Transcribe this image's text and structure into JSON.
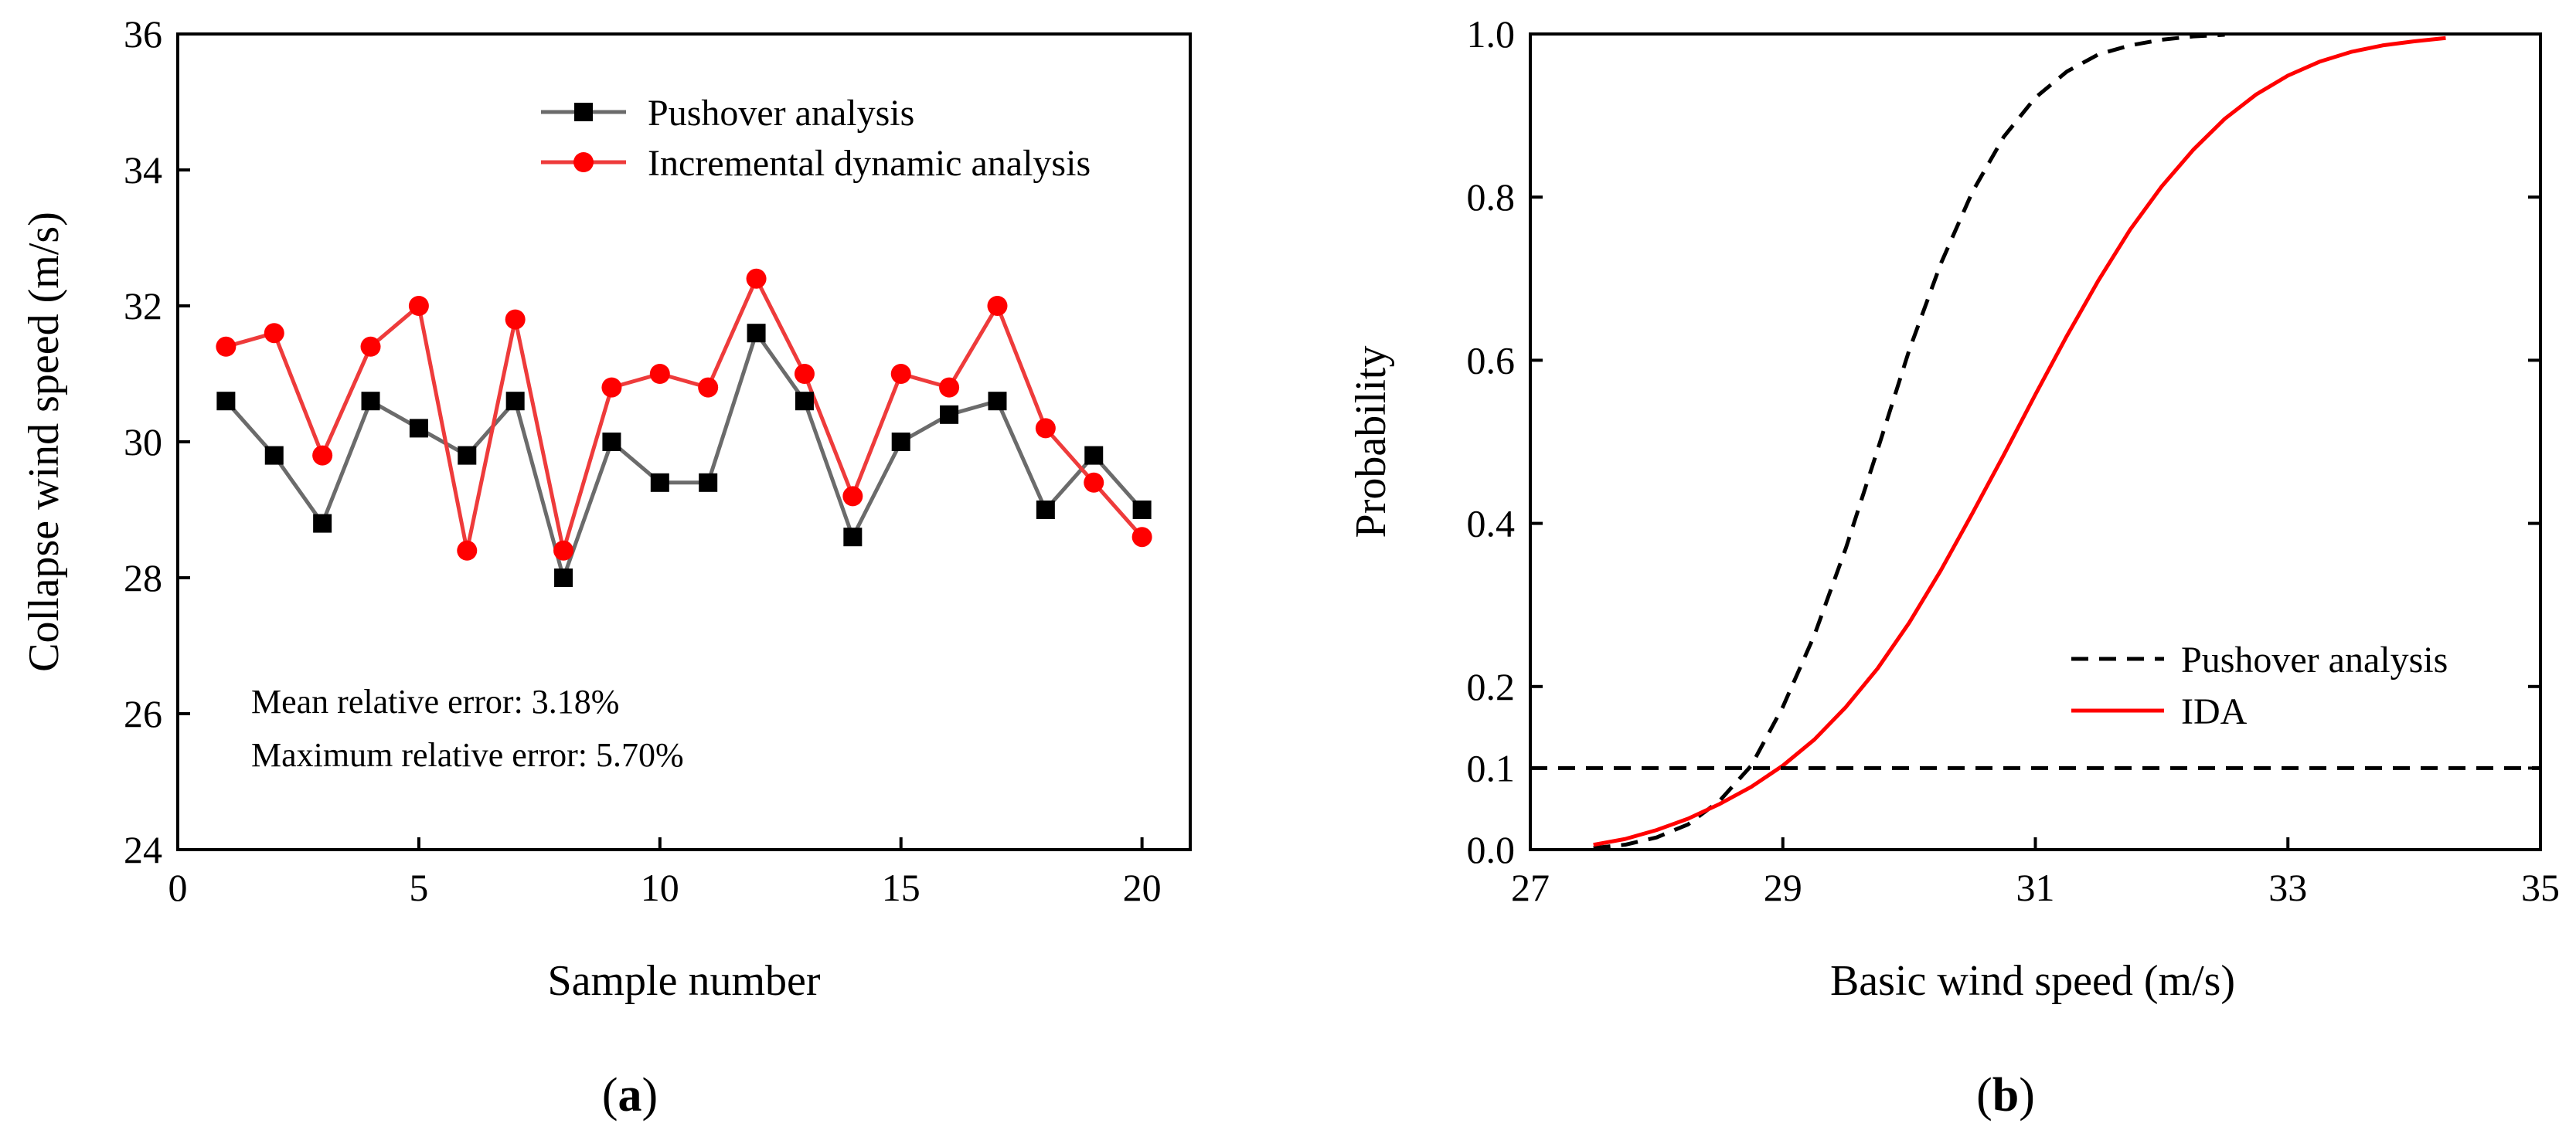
{
  "chart_data": [
    {
      "id": "a",
      "type": "line",
      "panel_label": "(a)",
      "xlabel": "Sample number",
      "ylabel": "Collapse wind speed (m/s)",
      "xlim": [
        0,
        21
      ],
      "ylim": [
        24,
        36
      ],
      "xticks": [
        0,
        5,
        10,
        15,
        20
      ],
      "yticks": [
        24,
        26,
        28,
        30,
        32,
        34,
        36
      ],
      "x": [
        1,
        2,
        3,
        4,
        5,
        6,
        7,
        8,
        9,
        10,
        11,
        12,
        13,
        14,
        15,
        16,
        17,
        18,
        19,
        20
      ],
      "series": [
        {
          "name": "Pushover analysis",
          "line_color": "#6b6b6b",
          "marker": "square",
          "marker_color": "#000000",
          "values": [
            30.6,
            29.8,
            28.8,
            30.6,
            30.2,
            29.8,
            30.6,
            28.0,
            30.0,
            29.4,
            29.4,
            31.6,
            30.6,
            28.6,
            30.0,
            30.4,
            30.6,
            29.0,
            29.8,
            29.0
          ]
        },
        {
          "name": "Incremental dynamic analysis",
          "line_color": "#ee3b3b",
          "marker": "circle",
          "marker_color": "#ff0000",
          "values": [
            31.4,
            31.6,
            29.8,
            31.4,
            32.0,
            28.4,
            31.8,
            28.4,
            30.8,
            31.0,
            30.8,
            32.4,
            31.0,
            29.2,
            31.0,
            30.8,
            32.0,
            30.2,
            29.4,
            28.6
          ]
        }
      ],
      "legend": "top-right",
      "annotations": [
        "Mean relative error: 3.18%",
        "Maximum relative error: 5.70%"
      ]
    },
    {
      "id": "b",
      "type": "line",
      "panel_label": "(b)",
      "xlabel": "Basic wind speed (m/s)",
      "ylabel": "Probability",
      "xlim": [
        27,
        35
      ],
      "ylim": [
        0,
        1
      ],
      "xticks": [
        27,
        29,
        31,
        33,
        35
      ],
      "yticks": [
        0.0,
        0.1,
        0.2,
        0.4,
        0.6,
        0.8,
        1.0
      ],
      "ytick_labels": [
        "0.0",
        "0.1",
        "0.2",
        "0.4",
        "0.6",
        "0.8",
        "1.0"
      ],
      "series": [
        {
          "name": "Pushover analysis",
          "style": "dashed",
          "color": "#000000",
          "x": [
            27.5,
            27.75,
            28.0,
            28.25,
            28.5,
            28.75,
            29.0,
            29.25,
            29.5,
            29.75,
            30.0,
            30.25,
            30.5,
            30.75,
            31.0,
            31.25,
            31.5,
            31.75,
            32.0,
            32.25,
            32.5
          ],
          "values": [
            0.002,
            0.006,
            0.015,
            0.031,
            0.06,
            0.103,
            0.175,
            0.263,
            0.37,
            0.49,
            0.612,
            0.718,
            0.806,
            0.874,
            0.922,
            0.954,
            0.975,
            0.986,
            0.993,
            0.997,
            0.999
          ]
        },
        {
          "name": "IDA",
          "style": "solid",
          "color": "#ff0000",
          "x": [
            27.5,
            27.75,
            28.0,
            28.25,
            28.5,
            28.75,
            29.0,
            29.25,
            29.5,
            29.75,
            30.0,
            30.25,
            30.5,
            30.75,
            31.0,
            31.25,
            31.5,
            31.75,
            32.0,
            32.25,
            32.5,
            32.75,
            33.0,
            33.25,
            33.5,
            33.75,
            34.0,
            34.25
          ],
          "values": [
            0.006,
            0.013,
            0.024,
            0.038,
            0.056,
            0.077,
            0.103,
            0.135,
            0.175,
            0.222,
            0.278,
            0.342,
            0.412,
            0.484,
            0.558,
            0.63,
            0.698,
            0.76,
            0.813,
            0.858,
            0.896,
            0.926,
            0.949,
            0.966,
            0.978,
            0.986,
            0.991,
            0.995
          ]
        },
        {
          "name": "10% probability reference",
          "style": "dashed",
          "color": "#000000",
          "in_legend": false,
          "x": [
            27,
            35
          ],
          "values": [
            0.1,
            0.1
          ]
        }
      ],
      "legend": "bottom-right"
    }
  ]
}
